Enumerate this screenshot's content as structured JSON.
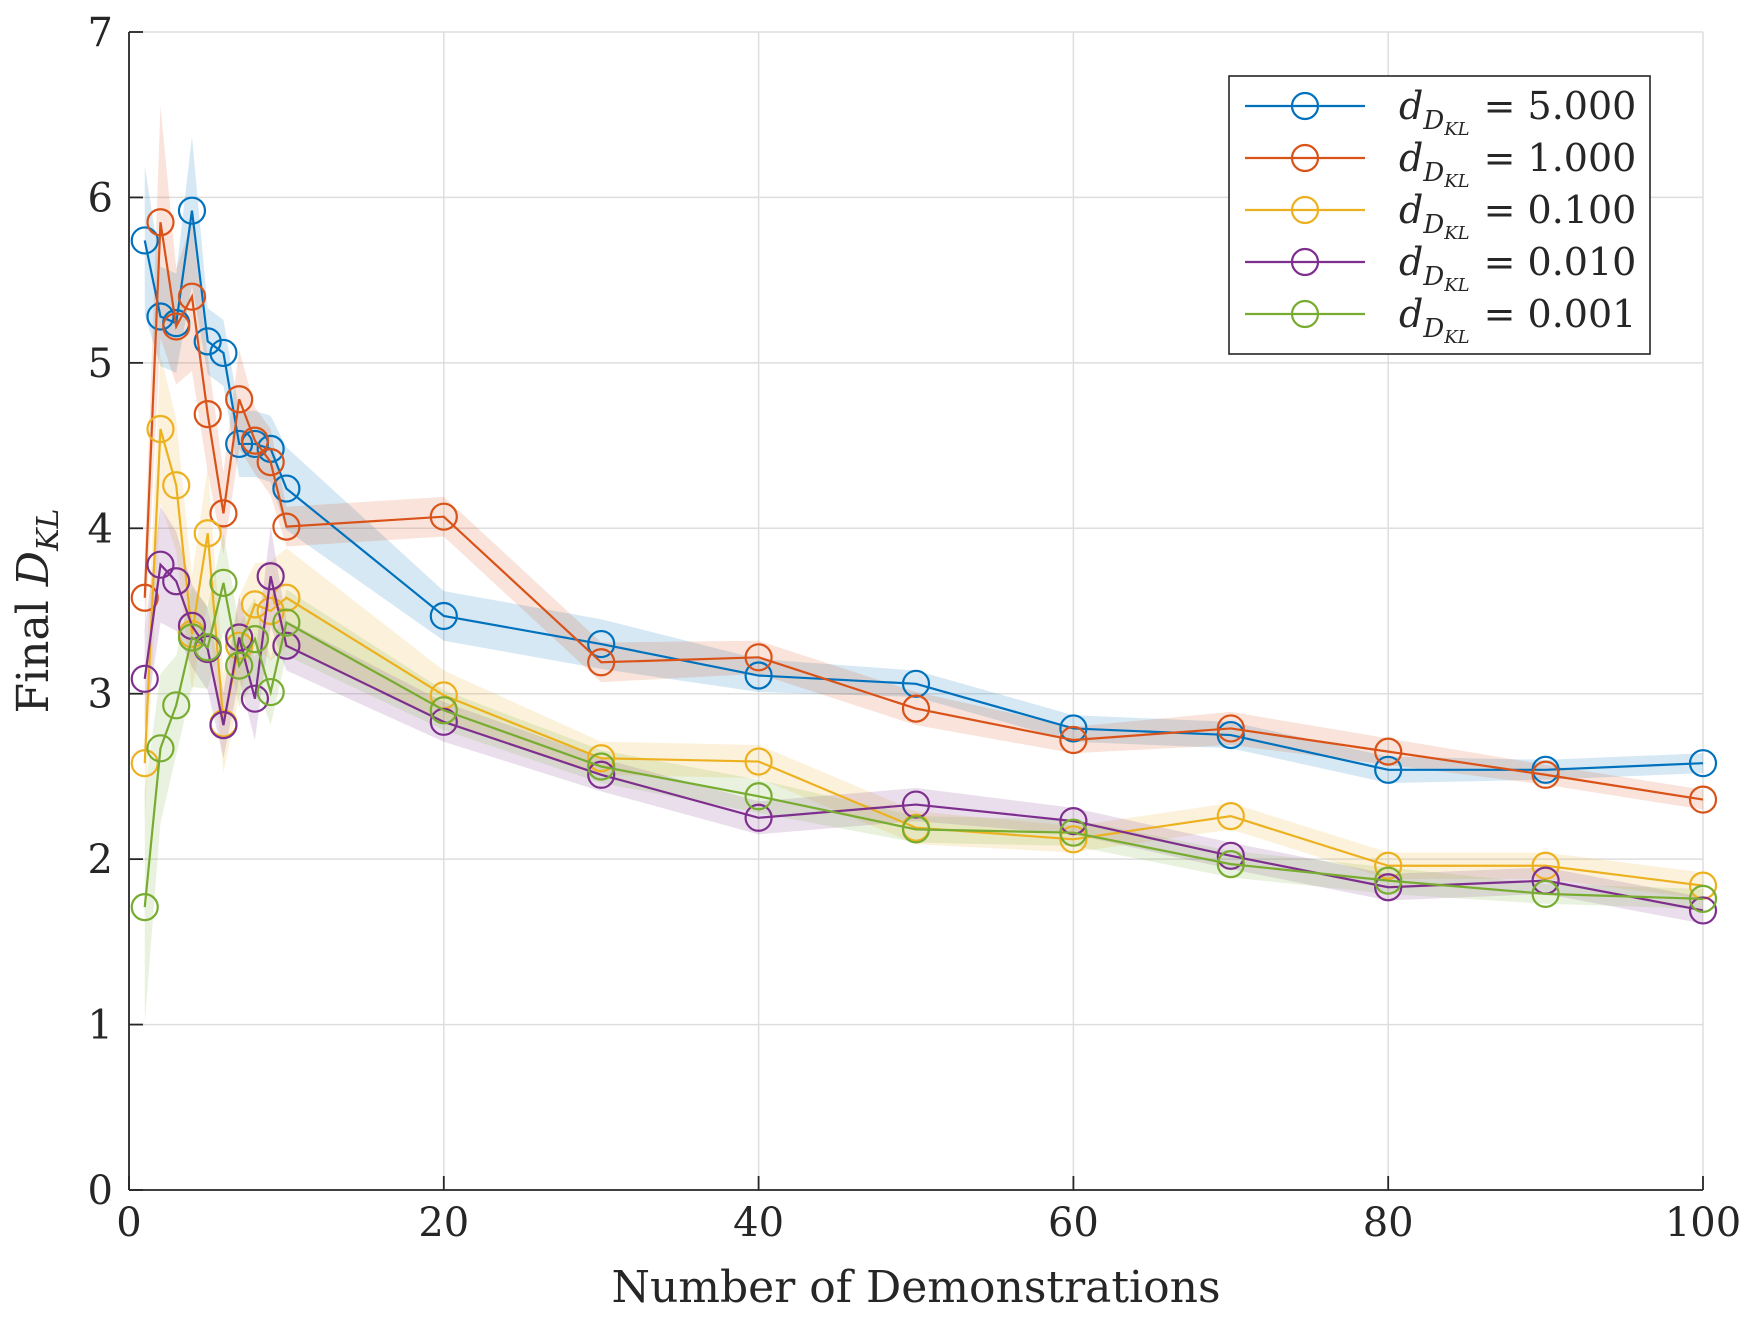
{
  "chart_data": {
    "type": "line",
    "title": "",
    "xlabel": "Number of Demonstrations",
    "ylabel": {
      "prefix": "Final ",
      "symbol": "D",
      "subscript": "KL"
    },
    "xlim": [
      0,
      100
    ],
    "ylim": [
      0,
      7
    ],
    "xticks": [
      0,
      20,
      40,
      60,
      80,
      100
    ],
    "yticks": [
      0,
      1,
      2,
      3,
      4,
      5,
      6,
      7
    ],
    "grid": true,
    "legend_position": "top-right",
    "x": [
      1,
      2,
      3,
      4,
      5,
      6,
      7,
      8,
      9,
      10,
      20,
      30,
      40,
      50,
      60,
      70,
      80,
      90,
      100
    ],
    "series": [
      {
        "name": "d_{D_KL} = 5.000",
        "legend_symbol": "d",
        "legend_subscript": "D",
        "legend_subsubscript": "KL",
        "legend_value": "= 5.000",
        "color": "#0072BD",
        "values": [
          5.74,
          5.28,
          5.24,
          5.92,
          5.13,
          5.06,
          4.51,
          4.51,
          4.48,
          4.24,
          3.47,
          3.3,
          3.11,
          3.06,
          2.79,
          2.75,
          2.54,
          2.54,
          2.58
        ],
        "band": [
          0.45,
          0.3,
          0.3,
          0.45,
          0.2,
          0.2,
          0.2,
          0.2,
          0.2,
          0.25,
          0.15,
          0.15,
          0.1,
          0.08,
          0.08,
          0.08,
          0.08,
          0.06,
          0.06
        ]
      },
      {
        "name": "d_{D_KL} = 1.000",
        "legend_symbol": "d",
        "legend_subscript": "D",
        "legend_subsubscript": "KL",
        "legend_value": "= 1.000",
        "color": "#D95319",
        "values": [
          3.58,
          5.85,
          5.22,
          5.4,
          4.69,
          4.09,
          4.78,
          4.53,
          4.4,
          4.01,
          4.07,
          3.19,
          3.22,
          2.91,
          2.72,
          2.79,
          2.65,
          2.51,
          2.36
        ],
        "band": [
          0.25,
          0.7,
          0.35,
          0.45,
          0.35,
          0.25,
          0.3,
          0.2,
          0.2,
          0.12,
          0.12,
          0.12,
          0.1,
          0.1,
          0.08,
          0.1,
          0.08,
          0.06,
          0.06
        ]
      },
      {
        "name": "d_{D_KL} = 0.100",
        "legend_symbol": "d",
        "legend_subscript": "D",
        "legend_subsubscript": "KL",
        "legend_value": "= 0.100",
        "color": "#EDB120",
        "values": [
          2.58,
          4.6,
          4.26,
          3.36,
          3.97,
          2.82,
          3.29,
          3.54,
          3.5,
          3.58,
          2.99,
          2.61,
          2.59,
          2.19,
          2.12,
          2.26,
          1.96,
          1.96,
          1.84
        ],
        "band": [
          0.35,
          0.45,
          0.4,
          0.35,
          0.4,
          0.3,
          0.3,
          0.25,
          0.3,
          0.3,
          0.15,
          0.1,
          0.1,
          0.1,
          0.08,
          0.08,
          0.08,
          0.08,
          0.08
        ]
      },
      {
        "name": "d_{D_KL} = 0.010",
        "legend_symbol": "d",
        "legend_subscript": "D",
        "legend_subsubscript": "KL",
        "legend_value": "= 0.010",
        "color": "#7E2F8E",
        "values": [
          3.09,
          3.78,
          3.68,
          3.41,
          3.27,
          2.81,
          3.34,
          2.97,
          3.71,
          3.29,
          2.83,
          2.51,
          2.25,
          2.33,
          2.23,
          2.02,
          1.83,
          1.87,
          1.69
        ],
        "band": [
          0.3,
          0.35,
          0.3,
          0.25,
          0.25,
          0.2,
          0.25,
          0.25,
          0.3,
          0.15,
          0.12,
          0.1,
          0.1,
          0.1,
          0.08,
          0.08,
          0.08,
          0.08,
          0.08
        ]
      },
      {
        "name": "d_{D_KL} = 0.001",
        "legend_symbol": "d",
        "legend_subscript": "D",
        "legend_subsubscript": "KL",
        "legend_value": "= 0.001",
        "color": "#77AC30",
        "values": [
          1.71,
          2.67,
          2.93,
          3.34,
          3.28,
          3.67,
          3.17,
          3.33,
          3.01,
          3.43,
          2.9,
          2.56,
          2.38,
          2.18,
          2.16,
          1.97,
          1.87,
          1.79,
          1.76
        ],
        "band": [
          0.7,
          0.45,
          0.3,
          0.3,
          0.25,
          0.3,
          0.25,
          0.25,
          0.2,
          0.2,
          0.12,
          0.1,
          0.1,
          0.08,
          0.08,
          0.08,
          0.08,
          0.06,
          0.06
        ]
      }
    ]
  }
}
